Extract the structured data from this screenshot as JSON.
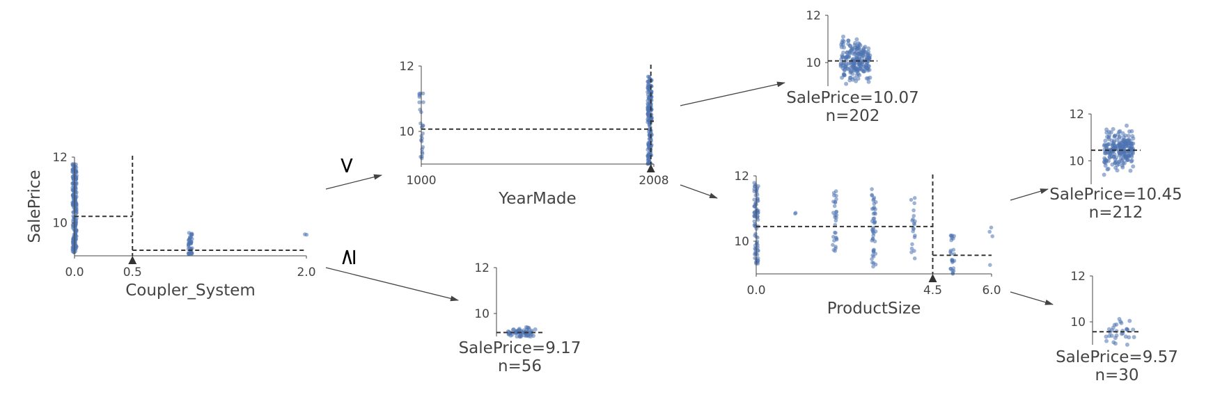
{
  "colors": {
    "points": "#4c72b0",
    "axis": "#444444",
    "split": "#333333",
    "arrow": "#444444"
  },
  "edge_labels": {
    "less": "<",
    "greater_equal": "≥"
  },
  "chart_data": [
    {
      "id": "root",
      "type": "scatter",
      "role": "split-node",
      "feature": "Coupler_System",
      "ylabel": "SalePrice",
      "xlim": [
        0.0,
        2.0
      ],
      "ylim": [
        9.0,
        12.0
      ],
      "xticks": [
        0.0,
        0.5,
        2.0
      ],
      "xtick_labels": [
        "0.0",
        "0.5",
        "2.0"
      ],
      "yticks": [
        10,
        12
      ],
      "ytick_labels": [
        "10",
        "12"
      ],
      "split": 0.5,
      "segments": [
        {
          "x0": 0.0,
          "x1": 0.5,
          "y": 10.2
        },
        {
          "x0": 0.5,
          "x1": 2.0,
          "y": 9.17
        }
      ],
      "clusters": [
        {
          "x": 0.0,
          "ymin": 9.1,
          "ymax": 11.8,
          "n": 220
        },
        {
          "x": 1.0,
          "ymin": 9.0,
          "ymax": 9.7,
          "n": 40
        },
        {
          "x": 2.0,
          "ymin": 9.6,
          "ymax": 9.7,
          "n": 2
        }
      ]
    },
    {
      "id": "yearmade",
      "type": "scatter",
      "role": "split-node",
      "feature": "YearMade",
      "xlim": [
        1000,
        2008
      ],
      "ylim": [
        9.0,
        12.0
      ],
      "xticks": [
        1000,
        2008
      ],
      "xtick_labels": [
        "1000",
        "2008"
      ],
      "yticks": [
        10,
        12
      ],
      "ytick_labels": [
        "10",
        "12"
      ],
      "split": 1995,
      "segments": [
        {
          "x0": 1000,
          "x1": 1995,
          "y": 10.07
        },
        {
          "x0": 1995,
          "x1": 2008,
          "y": 10.31
        }
      ],
      "clusters": [
        {
          "x": 1000,
          "ymin": 9.1,
          "ymax": 11.2,
          "n": 25
        },
        {
          "x": 1990,
          "ymin": 9.0,
          "ymax": 11.7,
          "n": 180
        }
      ]
    },
    {
      "id": "productsize",
      "type": "scatter",
      "role": "split-node",
      "feature": "ProductSize",
      "xlim": [
        0.0,
        6.0
      ],
      "ylim": [
        9.0,
        12.0
      ],
      "xticks": [
        0.0,
        4.5,
        6.0
      ],
      "xtick_labels": [
        "0.0",
        "4.5",
        "6.0"
      ],
      "yticks": [
        10,
        12
      ],
      "ytick_labels": [
        "10",
        "12"
      ],
      "split": 4.5,
      "segments": [
        {
          "x0": 0.0,
          "x1": 4.5,
          "y": 10.45
        },
        {
          "x0": 4.5,
          "x1": 6.0,
          "y": 9.57
        }
      ],
      "clusters": [
        {
          "x": 0.0,
          "ymin": 9.3,
          "ymax": 11.8,
          "n": 80
        },
        {
          "x": 1.0,
          "ymin": 10.8,
          "ymax": 10.9,
          "n": 2
        },
        {
          "x": 2.0,
          "ymin": 9.7,
          "ymax": 11.6,
          "n": 30
        },
        {
          "x": 3.0,
          "ymin": 9.2,
          "ymax": 11.6,
          "n": 45
        },
        {
          "x": 4.0,
          "ymin": 9.4,
          "ymax": 11.4,
          "n": 20
        },
        {
          "x": 5.0,
          "ymin": 9.0,
          "ymax": 10.3,
          "n": 25
        },
        {
          "x": 6.0,
          "ymin": 9.2,
          "ymax": 10.8,
          "n": 4
        }
      ]
    },
    {
      "id": "leaf-a",
      "type": "scatter",
      "role": "leaf",
      "ylim": [
        9.0,
        12.0
      ],
      "yticks": [
        10,
        12
      ],
      "ytick_labels": [
        "10",
        "12"
      ],
      "mean": 10.07,
      "n": 202,
      "ymin": 9.1,
      "ymax": 11.5,
      "label": "SalePrice=10.07",
      "count_label": "n=202"
    },
    {
      "id": "leaf-b",
      "type": "scatter",
      "role": "leaf",
      "ylim": [
        9.0,
        12.0
      ],
      "yticks": [
        10,
        12
      ],
      "ytick_labels": [
        "10",
        "12"
      ],
      "mean": 10.45,
      "n": 212,
      "ymin": 9.3,
      "ymax": 11.7,
      "label": "SalePrice=10.45",
      "count_label": "n=212"
    },
    {
      "id": "leaf-c",
      "type": "scatter",
      "role": "leaf",
      "ylim": [
        9.0,
        12.0
      ],
      "yticks": [
        10,
        12
      ],
      "ytick_labels": [
        "10",
        "12"
      ],
      "mean": 9.57,
      "n": 30,
      "ymin": 9.0,
      "ymax": 10.7,
      "label": "SalePrice=9.57",
      "count_label": "n=30"
    },
    {
      "id": "leaf-d",
      "type": "scatter",
      "role": "leaf",
      "ylim": [
        9.0,
        12.0
      ],
      "yticks": [
        10,
        12
      ],
      "ytick_labels": [
        "10",
        "12"
      ],
      "mean": 9.17,
      "n": 56,
      "ymin": 9.0,
      "ymax": 9.75,
      "label": "SalePrice=9.17",
      "count_label": "n=56"
    }
  ]
}
